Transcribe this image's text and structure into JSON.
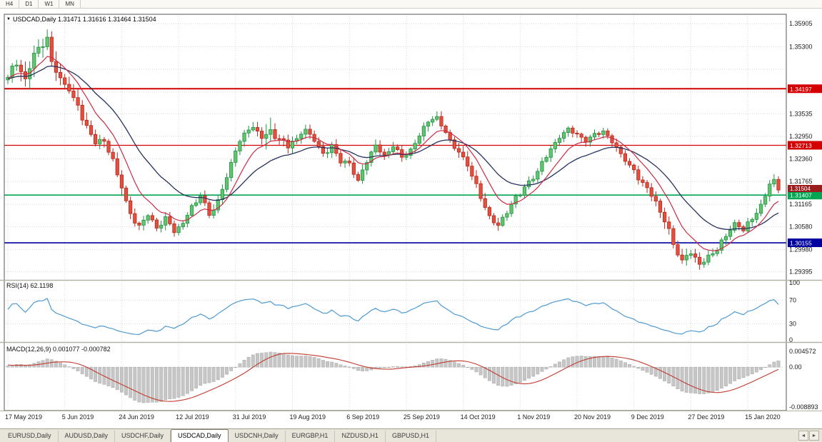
{
  "colors": {
    "bull_fill": "#62c46f",
    "bull_stroke": "#1f9243",
    "bear_fill": "#e3503f",
    "bear_stroke": "#b5281c",
    "ma_fast": "#cc2b44",
    "ma_slow": "#26315e",
    "rsi_line": "#4e9ad2",
    "macd_hist": "#c6c6c6",
    "macd_hist_edge": "#a0a0a0",
    "macd_signal": "#c23b2e",
    "grid": "#d8d8d8"
  },
  "icons": {
    "chart_marker": "▼",
    "tab_scroll_left": "◄",
    "tab_scroll_right": "►"
  },
  "toolbar": {
    "timeframes": [
      "H4",
      "D1",
      "W1",
      "MN"
    ]
  },
  "chart": {
    "title": "USDCAD,Daily 1.31471 1.31616 1.31464 1.31504"
  },
  "indicators": {
    "rsi": {
      "label": "RSI(14) 62.1198"
    },
    "macd": {
      "label": "MACD(12,26,9) 0.001077 -0.000782"
    }
  },
  "tabs": {
    "items": [
      {
        "label": "EURUSD,Daily",
        "active": false
      },
      {
        "label": "AUDUSD,Daily",
        "active": false
      },
      {
        "label": "USDCHF,Daily",
        "active": false
      },
      {
        "label": "USDCAD,Daily",
        "active": true
      },
      {
        "label": "USDCNH,Daily",
        "active": false
      },
      {
        "label": "EURGBP,H1",
        "active": false
      },
      {
        "label": "NZDUSD,H1",
        "active": false
      },
      {
        "label": "GBPUSD,H1",
        "active": false
      }
    ]
  },
  "chart_data": {
    "type": "candlestick",
    "symbol": "USDCAD",
    "timeframe": "Daily",
    "quote": {
      "open": "1.31471",
      "high": "1.31616",
      "low": "1.31464",
      "close": "1.31504"
    },
    "price_axis_labels": [
      "1.35905",
      "1.35300",
      "1.33535",
      "1.32950",
      "1.32360",
      "1.31765",
      "1.31165",
      "1.30580",
      "1.29980",
      "1.29395"
    ],
    "grid_extra_levels": [
      1.34705,
      1.3411
    ],
    "hlines": [
      {
        "label": "1.34197",
        "value": 1.34197,
        "color": "#d40000",
        "width": 2
      },
      {
        "label": "1.32713",
        "value": 1.32713,
        "color": "#d40000",
        "width": 1.2
      },
      {
        "label": "1.31407",
        "value": 1.31407,
        "color": "#00a651",
        "width": 1.6
      },
      {
        "label": "1.30155",
        "value": 1.30155,
        "color": "#0000a0",
        "width": 1.6
      }
    ],
    "current_price": {
      "label": "1.31504",
      "value": 1.31504,
      "bg": "#9b1c1c"
    },
    "date_labels": [
      "17 May 2019",
      "5 Jun 2019",
      "24 Jun 2019",
      "12 Jul 2019",
      "31 Jul 2019",
      "19 Aug 2019",
      "6 Sep 2019",
      "25 Sep 2019",
      "14 Oct 2019",
      "1 Nov 2019",
      "20 Nov 2019",
      "9 Dec 2019",
      "27 Dec 2019",
      "15 Jan 2020"
    ],
    "first_label_day": 0,
    "label_interval_days": 13,
    "days": 177,
    "rsi": {
      "period": 14,
      "levels": [
        100,
        70,
        30,
        0
      ],
      "value": 62.1198
    },
    "macd": {
      "fast": 12,
      "slow": 26,
      "signal": 9,
      "main": 0.001077,
      "signal_value": -0.000782,
      "axis_labels": [
        "0.004572",
        "0.00",
        "-0.008893"
      ]
    },
    "ma_fast_period": 9,
    "ma_slow_period": 22,
    "price_anchors": [
      [
        -30,
        1.34
      ],
      [
        -25,
        1.3445
      ],
      [
        -20,
        1.348
      ],
      [
        -15,
        1.3435
      ],
      [
        -10,
        1.3465
      ],
      [
        -5,
        1.3435
      ],
      [
        0,
        1.345
      ],
      [
        2,
        1.3488
      ],
      [
        4,
        1.3448
      ],
      [
        6,
        1.3508
      ],
      [
        8,
        1.3532
      ],
      [
        9,
        1.3548
      ],
      [
        10,
        1.3492
      ],
      [
        12,
        1.3448
      ],
      [
        14,
        1.3418
      ],
      [
        16,
        1.3372
      ],
      [
        18,
        1.3312
      ],
      [
        20,
        1.3278
      ],
      [
        22,
        1.3288
      ],
      [
        24,
        1.3228
      ],
      [
        26,
        1.3158
      ],
      [
        28,
        1.3088
      ],
      [
        30,
        1.3062
      ],
      [
        32,
        1.3092
      ],
      [
        34,
        1.3052
      ],
      [
        36,
        1.3078
      ],
      [
        38,
        1.3048
      ],
      [
        40,
        1.3068
      ],
      [
        42,
        1.3108
      ],
      [
        44,
        1.3138
      ],
      [
        46,
        1.3088
      ],
      [
        48,
        1.3128
      ],
      [
        50,
        1.3185
      ],
      [
        52,
        1.3258
      ],
      [
        54,
        1.3302
      ],
      [
        56,
        1.3322
      ],
      [
        58,
        1.3296
      ],
      [
        60,
        1.3302
      ],
      [
        62,
        1.3282
      ],
      [
        64,
        1.3272
      ],
      [
        66,
        1.3292
      ],
      [
        68,
        1.3312
      ],
      [
        70,
        1.3282
      ],
      [
        72,
        1.3248
      ],
      [
        74,
        1.3272
      ],
      [
        76,
        1.3232
      ],
      [
        78,
        1.3218
      ],
      [
        80,
        1.3178
      ],
      [
        82,
        1.3232
      ],
      [
        84,
        1.3272
      ],
      [
        86,
        1.3242
      ],
      [
        88,
        1.3268
      ],
      [
        90,
        1.3242
      ],
      [
        92,
        1.3258
      ],
      [
        94,
        1.3298
      ],
      [
        96,
        1.3332
      ],
      [
        98,
        1.3342
      ],
      [
        100,
        1.3308
      ],
      [
        102,
        1.3268
      ],
      [
        104,
        1.3238
      ],
      [
        106,
        1.3188
      ],
      [
        108,
        1.3138
      ],
      [
        110,
        1.3082
      ],
      [
        112,
        1.3062
      ],
      [
        114,
        1.3092
      ],
      [
        116,
        1.3132
      ],
      [
        118,
        1.3162
      ],
      [
        120,
        1.3188
      ],
      [
        122,
        1.3222
      ],
      [
        124,
        1.3258
      ],
      [
        126,
        1.3292
      ],
      [
        128,
        1.3318
      ],
      [
        130,
        1.3302
      ],
      [
        132,
        1.3278
      ],
      [
        134,
        1.3302
      ],
      [
        136,
        1.3312
      ],
      [
        138,
        1.3282
      ],
      [
        140,
        1.3248
      ],
      [
        142,
        1.3218
      ],
      [
        144,
        1.3188
      ],
      [
        146,
        1.3162
      ],
      [
        148,
        1.3122
      ],
      [
        150,
        1.3072
      ],
      [
        152,
        1.3012
      ],
      [
        154,
        1.2972
      ],
      [
        156,
        1.2992
      ],
      [
        158,
        1.2958
      ],
      [
        160,
        1.2978
      ],
      [
        162,
        1.3002
      ],
      [
        164,
        1.3038
      ],
      [
        166,
        1.3062
      ],
      [
        168,
        1.3048
      ],
      [
        170,
        1.3078
      ],
      [
        172,
        1.3118
      ],
      [
        174,
        1.3168
      ],
      [
        175,
        1.318
      ],
      [
        176,
        1.3152
      ]
    ],
    "vol_anchors": [
      [
        -30,
        0.005
      ],
      [
        0,
        0.0062
      ],
      [
        8,
        0.0078
      ],
      [
        14,
        0.0062
      ],
      [
        20,
        0.005
      ],
      [
        26,
        0.0045
      ],
      [
        32,
        0.0038
      ],
      [
        40,
        0.0035
      ],
      [
        50,
        0.004
      ],
      [
        56,
        0.0038
      ],
      [
        60,
        0.0085
      ],
      [
        61,
        0.0045
      ],
      [
        70,
        0.0035
      ],
      [
        80,
        0.004
      ],
      [
        90,
        0.0032
      ],
      [
        98,
        0.0036
      ],
      [
        106,
        0.0042
      ],
      [
        112,
        0.0038
      ],
      [
        120,
        0.0032
      ],
      [
        130,
        0.0034
      ],
      [
        140,
        0.0032
      ],
      [
        148,
        0.004
      ],
      [
        152,
        0.0052
      ],
      [
        156,
        0.0046
      ],
      [
        160,
        0.0038
      ],
      [
        166,
        0.0032
      ],
      [
        172,
        0.0036
      ],
      [
        176,
        0.004
      ]
    ]
  }
}
